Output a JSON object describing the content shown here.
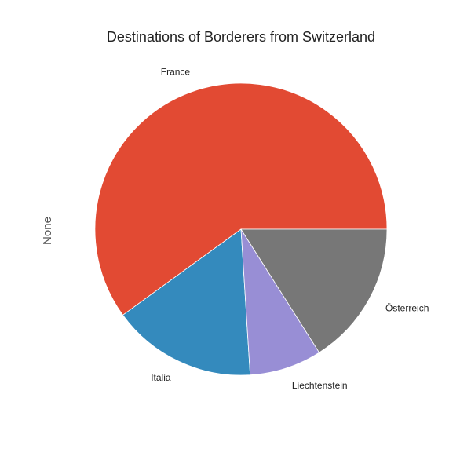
{
  "chart_data": {
    "type": "pie",
    "title": "Destinations of Borderers from Switzerland",
    "ylabel": "None",
    "categories": [
      "France",
      "Italia",
      "Liechtenstein",
      "Österreich"
    ],
    "values": [
      60,
      16,
      8,
      16
    ],
    "colors": [
      "#E24A33",
      "#348ABD",
      "#988ED5",
      "#777777"
    ],
    "start_angle_deg": 0,
    "direction": "counterclockwise",
    "slice_edge_color": "#ffffff"
  }
}
